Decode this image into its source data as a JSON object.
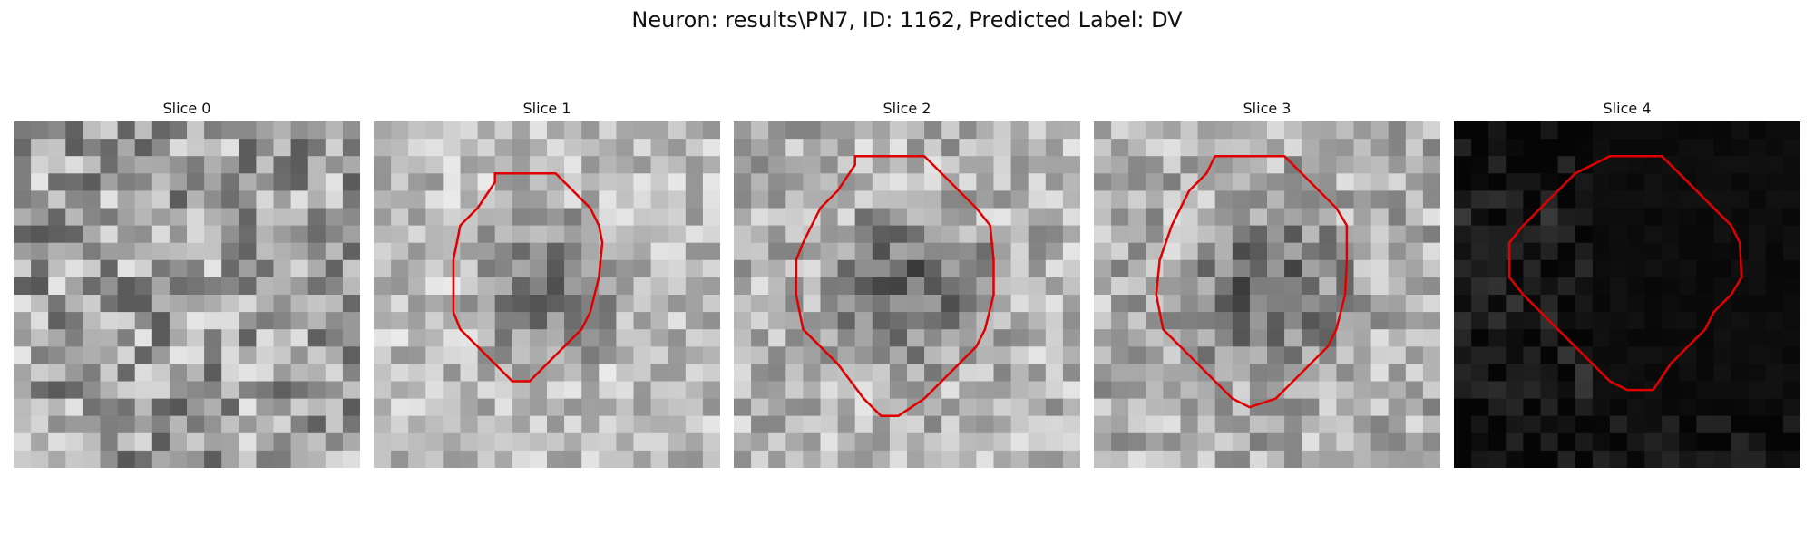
{
  "figure": {
    "title": "Neuron: results\\PN7, ID: 1162, Predicted Label: DV"
  },
  "slices": [
    {
      "title": "Slice 0",
      "has_contour": false,
      "seed": 11,
      "base": 0.62,
      "spread": 0.28,
      "blob": 0.0
    },
    {
      "title": "Slice 1",
      "has_contour": true,
      "seed": 23,
      "base": 0.74,
      "spread": 0.18,
      "blob": 0.3,
      "contour": [
        [
          7,
          3
        ],
        [
          10.5,
          3
        ],
        [
          11.5,
          4
        ],
        [
          12.5,
          5
        ],
        [
          13,
          6
        ],
        [
          13.2,
          7
        ],
        [
          13,
          9
        ],
        [
          12.5,
          11
        ],
        [
          12,
          12
        ],
        [
          11,
          13
        ],
        [
          10,
          14
        ],
        [
          9,
          15
        ],
        [
          8,
          15
        ],
        [
          7,
          14
        ],
        [
          6,
          13
        ],
        [
          5,
          12
        ],
        [
          4.6,
          11
        ],
        [
          4.6,
          8
        ],
        [
          5,
          6
        ],
        [
          6,
          5
        ],
        [
          7,
          3.5
        ]
      ]
    },
    {
      "title": "Slice 2",
      "has_contour": true,
      "seed": 37,
      "base": 0.7,
      "spread": 0.2,
      "blob": 0.35,
      "contour": [
        [
          7,
          2
        ],
        [
          11,
          2
        ],
        [
          12,
          3
        ],
        [
          13,
          4
        ],
        [
          14,
          5
        ],
        [
          14.8,
          6
        ],
        [
          15,
          8
        ],
        [
          15,
          10
        ],
        [
          14.5,
          12
        ],
        [
          14,
          13
        ],
        [
          13,
          14
        ],
        [
          12,
          15
        ],
        [
          11,
          16
        ],
        [
          9.5,
          17
        ],
        [
          8.5,
          17
        ],
        [
          7.5,
          16
        ],
        [
          6,
          14
        ],
        [
          5,
          13
        ],
        [
          4,
          12
        ],
        [
          3.6,
          10
        ],
        [
          3.6,
          8
        ],
        [
          4,
          7
        ],
        [
          5,
          5
        ],
        [
          6,
          4
        ],
        [
          7,
          2.5
        ]
      ]
    },
    {
      "title": "Slice 3",
      "has_contour": true,
      "seed": 51,
      "base": 0.68,
      "spread": 0.2,
      "blob": 0.33,
      "contour": [
        [
          7,
          2
        ],
        [
          11,
          2
        ],
        [
          12,
          3
        ],
        [
          13,
          4
        ],
        [
          14,
          5
        ],
        [
          14.6,
          6
        ],
        [
          14.6,
          8
        ],
        [
          14.5,
          10
        ],
        [
          14,
          12
        ],
        [
          13.5,
          13
        ],
        [
          12.5,
          14
        ],
        [
          11.5,
          15
        ],
        [
          10.5,
          16
        ],
        [
          9,
          16.5
        ],
        [
          8,
          16
        ],
        [
          7,
          15
        ],
        [
          6,
          14
        ],
        [
          5,
          13
        ],
        [
          4,
          12
        ],
        [
          3.6,
          10
        ],
        [
          3.8,
          8
        ],
        [
          4.5,
          6
        ],
        [
          5.5,
          4
        ],
        [
          6.5,
          3
        ]
      ]
    },
    {
      "title": "Slice 4",
      "has_contour": true,
      "seed": 67,
      "base": 0.05,
      "spread": 0.1,
      "blob": 0.0,
      "contour": [
        [
          9,
          2
        ],
        [
          12,
          2
        ],
        [
          13,
          3
        ],
        [
          14,
          4
        ],
        [
          15,
          5
        ],
        [
          16,
          6
        ],
        [
          16.5,
          7
        ],
        [
          16.6,
          9
        ],
        [
          16,
          10
        ],
        [
          15,
          11
        ],
        [
          14.5,
          12
        ],
        [
          13.5,
          13
        ],
        [
          12.5,
          14
        ],
        [
          11.5,
          15.5
        ],
        [
          10,
          15.5
        ],
        [
          9,
          15
        ],
        [
          8,
          14
        ],
        [
          7,
          13
        ],
        [
          6,
          12
        ],
        [
          5,
          11
        ],
        [
          4,
          10
        ],
        [
          3.2,
          9
        ],
        [
          3.2,
          7
        ],
        [
          4,
          6
        ],
        [
          5,
          5
        ],
        [
          6,
          4
        ],
        [
          7,
          3
        ],
        [
          8,
          2.5
        ]
      ]
    }
  ]
}
